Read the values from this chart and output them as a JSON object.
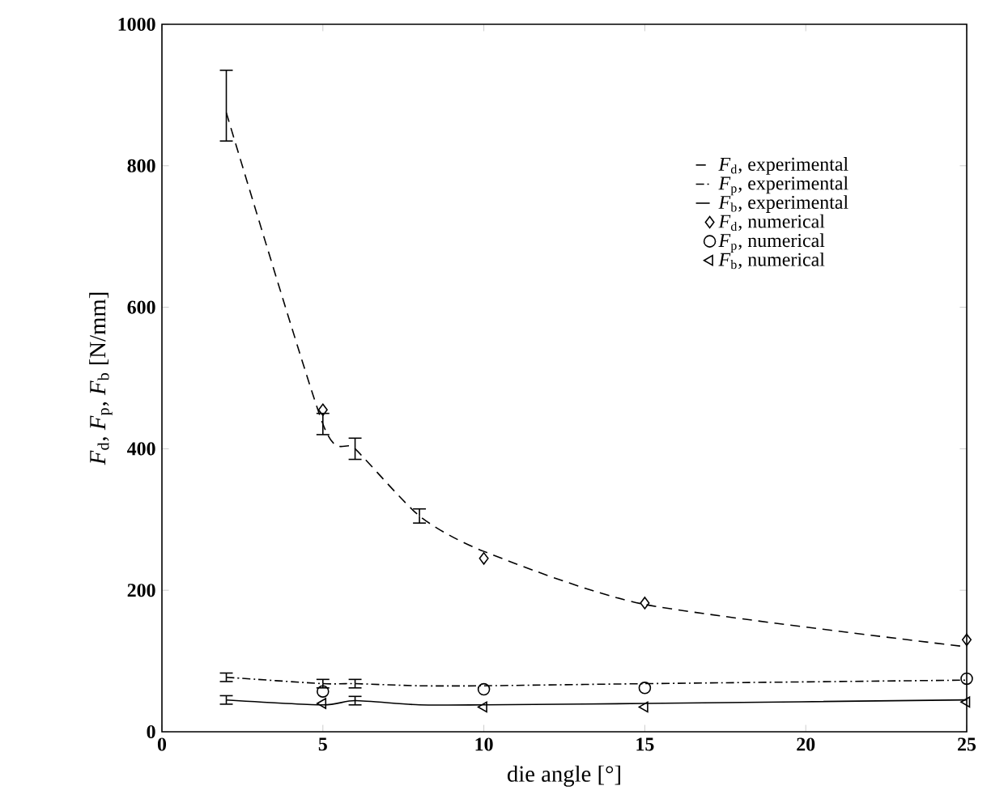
{
  "chart_data": {
    "type": "line",
    "xlabel": "die angle [°]",
    "ylabel": "*F*$_{d}$, *F*$_{p}$, *F*$_{b}$ [N/mm]",
    "xlim": [
      0,
      25
    ],
    "ylim": [
      0,
      1000
    ],
    "xticks": [
      0,
      5,
      10,
      15,
      20,
      25
    ],
    "yticks": [
      0,
      200,
      400,
      600,
      800,
      1000
    ],
    "legend": "top right",
    "grid": false,
    "series": [
      {
        "name": "*F*$_{d}$, experimental",
        "line_style": "dashed",
        "marker": "none",
        "color": "#000000",
        "x": [
          2,
          5,
          6,
          8,
          10,
          15,
          25
        ],
        "values": [
          875,
          435,
          400,
          305,
          255,
          180,
          120
        ],
        "errors": [
          [
            835,
            935
          ],
          15,
          15,
          10,
          null,
          null,
          null
        ]
      },
      {
        "name": "*F*$_{p}$, experimental",
        "line_style": "dashdot",
        "marker": "none",
        "color": "#000000",
        "x": [
          2,
          5,
          6,
          8,
          10,
          15,
          25
        ],
        "values": [
          77,
          68,
          68,
          65,
          65,
          68,
          73
        ],
        "errors": [
          6,
          6,
          6,
          null,
          null,
          null,
          null
        ]
      },
      {
        "name": "*F*$_{b}$, experimental",
        "line_style": "solid",
        "marker": "none",
        "color": "#000000",
        "x": [
          2,
          5,
          6,
          8,
          10,
          15,
          25
        ],
        "values": [
          45,
          38,
          44,
          38,
          38,
          40,
          45
        ],
        "errors": [
          6,
          null,
          6,
          null,
          null,
          null,
          null
        ]
      },
      {
        "name": "*F*$_{d}$, numerical",
        "type": "scatter",
        "marker": "diamond",
        "color": "#000000",
        "x": [
          5,
          10,
          15,
          25
        ],
        "values": [
          455,
          245,
          182,
          130
        ]
      },
      {
        "name": "*F*$_{p}$, numerical",
        "type": "scatter",
        "marker": "circle",
        "color": "#000000",
        "x": [
          5,
          10,
          15,
          25
        ],
        "values": [
          57,
          60,
          62,
          75
        ]
      },
      {
        "name": "*F*$_{b}$, numerical",
        "type": "scatter",
        "marker": "triangle",
        "color": "#000000",
        "x": [
          5,
          10,
          15,
          25
        ],
        "values": [
          40,
          35,
          35,
          42
        ]
      }
    ]
  }
}
